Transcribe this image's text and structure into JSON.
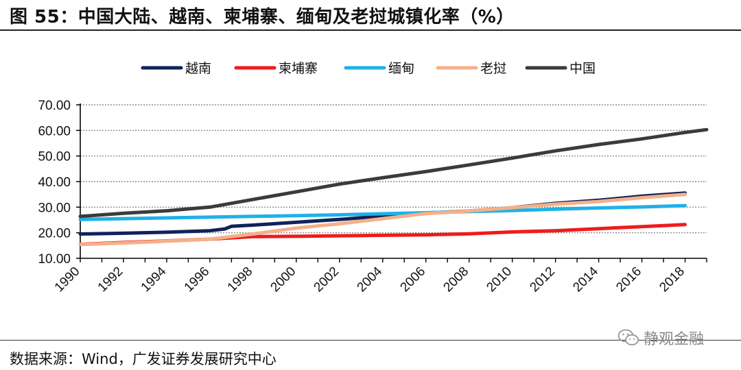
{
  "header": {
    "title": "图 55：中国大陆、越南、柬埔寨、缅甸及老挝城镇化率（%）"
  },
  "footer": {
    "source": "数据来源：Wind，广发证券发展研究中心"
  },
  "watermark": {
    "text": "静观金融",
    "icon": "wechat-icon"
  },
  "chart_data": {
    "type": "line",
    "title": "中国大陆、越南、柬埔寨、缅甸及老挝城镇化率（%）",
    "xlabel": "",
    "ylabel": "",
    "xlim": [
      1990,
      2019
    ],
    "ylim": [
      10,
      70
    ],
    "yticks": [
      "10.00",
      "20.00",
      "30.00",
      "40.00",
      "50.00",
      "60.00",
      "70.00"
    ],
    "xticks": [
      "1990",
      "1992",
      "1994",
      "1996",
      "1998",
      "2000",
      "2002",
      "2004",
      "2006",
      "2008",
      "2010",
      "2012",
      "2014",
      "2016",
      "2018"
    ],
    "grid": "horizontal dotted",
    "legend_position": "top",
    "series": [
      {
        "name": "越南",
        "color": "#10225a",
        "x": [
          1990,
          1992,
          1994,
          1996,
          1996.7,
          1997,
          1998,
          2000,
          2002,
          2004,
          2006,
          2008,
          2010,
          2012,
          2014,
          2016,
          2018
        ],
        "y": [
          19.5,
          19.8,
          20.2,
          20.8,
          21.5,
          22.5,
          23.0,
          24.1,
          25.2,
          26.5,
          27.7,
          28.5,
          29.8,
          31.5,
          32.7,
          34.3,
          35.5
        ]
      },
      {
        "name": "柬埔寨",
        "color": "#ee1c1c",
        "x": [
          1990,
          1992,
          1994,
          1996,
          1998,
          2000,
          2002,
          2004,
          2006,
          2008,
          2010,
          2012,
          2014,
          2016,
          2018
        ],
        "y": [
          15.5,
          16.2,
          16.8,
          17.5,
          18.5,
          18.6,
          18.8,
          19.0,
          19.2,
          19.6,
          20.3,
          20.8,
          21.6,
          22.4,
          23.2
        ]
      },
      {
        "name": "缅甸",
        "color": "#1eb1e8",
        "x": [
          1990,
          1992,
          1994,
          1996,
          1998,
          2000,
          2002,
          2004,
          2006,
          2008,
          2010,
          2012,
          2014,
          2016,
          2018
        ],
        "y": [
          25.2,
          25.5,
          25.8,
          26.1,
          26.4,
          26.7,
          27.0,
          27.4,
          27.8,
          28.3,
          28.7,
          29.2,
          29.7,
          30.1,
          30.6
        ]
      },
      {
        "name": "老挝",
        "color": "#f5b088",
        "x": [
          1990,
          1992,
          1994,
          1996,
          1998,
          2000,
          2002,
          2004,
          2006,
          2008,
          2010,
          2012,
          2014,
          2016,
          2018
        ],
        "y": [
          15.4,
          16.0,
          16.7,
          17.5,
          19.5,
          21.8,
          23.5,
          25.5,
          27.5,
          28.5,
          29.8,
          31.2,
          32.2,
          33.7,
          35.0
        ]
      },
      {
        "name": "中国",
        "color": "#3b3b3b",
        "x": [
          1990,
          1992,
          1994,
          1996,
          1998,
          2000,
          2002,
          2004,
          2006,
          2008,
          2010,
          2012,
          2014,
          2016,
          2018,
          2019
        ],
        "y": [
          26.4,
          27.6,
          28.6,
          30.0,
          33.0,
          36.0,
          39.0,
          41.5,
          43.9,
          46.5,
          49.2,
          52.0,
          54.5,
          56.7,
          59.2,
          60.3
        ]
      }
    ]
  }
}
